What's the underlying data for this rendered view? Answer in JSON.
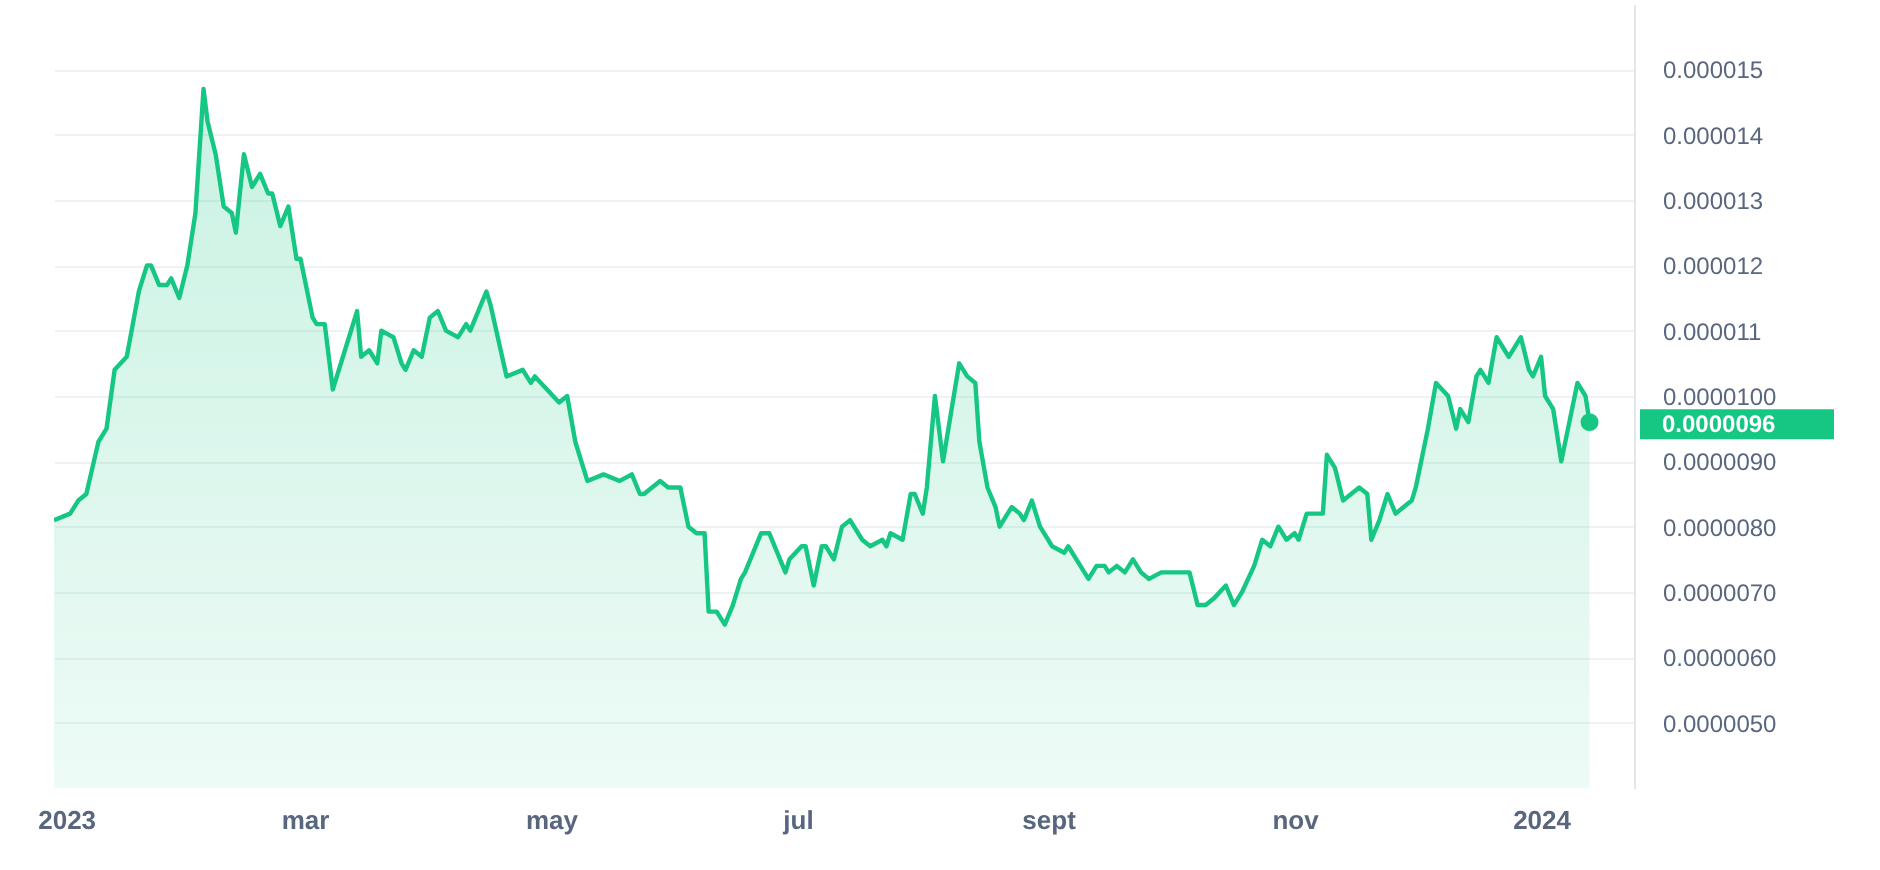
{
  "chart_data": {
    "type": "area",
    "x": [
      "2022-12-29",
      "2023-01-02",
      "2023-01-04",
      "2023-01-06",
      "2023-01-09",
      "2023-01-11",
      "2023-01-13",
      "2023-01-16",
      "2023-01-19",
      "2023-01-21",
      "2023-01-22",
      "2023-01-24",
      "2023-01-26",
      "2023-01-27",
      "2023-01-29",
      "2023-01-31",
      "2023-02-02",
      "2023-02-04",
      "2023-02-05",
      "2023-02-07",
      "2023-02-09",
      "2023-02-11",
      "2023-02-12",
      "2023-02-14",
      "2023-02-16",
      "2023-02-18",
      "2023-02-20",
      "2023-02-21",
      "2023-02-23",
      "2023-02-25",
      "2023-02-27",
      "2023-02-28",
      "2023-03-03",
      "2023-03-04",
      "2023-03-06",
      "2023-03-08",
      "2023-03-11",
      "2023-03-14",
      "2023-03-15",
      "2023-03-17",
      "2023-03-19",
      "2023-03-20",
      "2023-03-23",
      "2023-03-25",
      "2023-03-26",
      "2023-03-28",
      "2023-03-30",
      "2023-04-01",
      "2023-04-03",
      "2023-04-05",
      "2023-04-08",
      "2023-04-10",
      "2023-04-11",
      "2023-04-15",
      "2023-04-16",
      "2023-04-20",
      "2023-04-24",
      "2023-04-26",
      "2023-04-27",
      "2023-04-30",
      "2023-05-03",
      "2023-05-05",
      "2023-05-07",
      "2023-05-10",
      "2023-05-14",
      "2023-05-18",
      "2023-05-21",
      "2023-05-23",
      "2023-05-24",
      "2023-05-28",
      "2023-05-30",
      "2023-06-02",
      "2023-06-04",
      "2023-06-06",
      "2023-06-08",
      "2023-06-09",
      "2023-06-11",
      "2023-06-13",
      "2023-06-15",
      "2023-06-17",
      "2023-06-18",
      "2023-06-22",
      "2023-06-24",
      "2023-06-28",
      "2023-06-29",
      "2023-07-02",
      "2023-07-03",
      "2023-07-05",
      "2023-07-07",
      "2023-07-08",
      "2023-07-10",
      "2023-07-12",
      "2023-07-14",
      "2023-07-17",
      "2023-07-19",
      "2023-07-22",
      "2023-07-23",
      "2023-07-24",
      "2023-07-27",
      "2023-07-29",
      "2023-07-30",
      "2023-08-01",
      "2023-08-02",
      "2023-08-04",
      "2023-08-06",
      "2023-08-10",
      "2023-08-12",
      "2023-08-14",
      "2023-08-15",
      "2023-08-17",
      "2023-08-19",
      "2023-08-20",
      "2023-08-23",
      "2023-08-25",
      "2023-08-26",
      "2023-08-28",
      "2023-08-30",
      "2023-08-31",
      "2023-09-02",
      "2023-09-05",
      "2023-09-06",
      "2023-09-08",
      "2023-09-11",
      "2023-09-13",
      "2023-09-15",
      "2023-09-16",
      "2023-09-18",
      "2023-09-20",
      "2023-09-22",
      "2023-09-24",
      "2023-09-26",
      "2023-09-29",
      "2023-10-01",
      "2023-10-03",
      "2023-10-06",
      "2023-10-08",
      "2023-10-10",
      "2023-10-12",
      "2023-10-15",
      "2023-10-17",
      "2023-10-19",
      "2023-10-22",
      "2023-10-24",
      "2023-10-26",
      "2023-10-28",
      "2023-10-30",
      "2023-11-01",
      "2023-11-02",
      "2023-11-04",
      "2023-11-07",
      "2023-11-08",
      "2023-11-09",
      "2023-11-11",
      "2023-11-13",
      "2023-11-15",
      "2023-11-17",
      "2023-11-19",
      "2023-11-20",
      "2023-11-22",
      "2023-11-24",
      "2023-11-26",
      "2023-11-28",
      "2023-11-30",
      "2023-12-01",
      "2023-12-04",
      "2023-12-06",
      "2023-12-09",
      "2023-12-11",
      "2023-12-12",
      "2023-12-14",
      "2023-12-16",
      "2023-12-17",
      "2023-12-19",
      "2023-12-21",
      "2023-12-23",
      "2023-12-24",
      "2023-12-27",
      "2023-12-29",
      "2023-12-30",
      "2024-01-01",
      "2024-01-02",
      "2024-01-04",
      "2024-01-06",
      "2024-01-08",
      "2024-01-10",
      "2024-01-12",
      "2024-01-13"
    ],
    "series": [
      {
        "color": "#16c784",
        "values": [
          8.1e-06,
          8.2e-06,
          8.4e-06,
          8.5e-06,
          9.3e-06,
          9.5e-06,
          1.04e-05,
          1.06e-05,
          1.16e-05,
          1.2e-05,
          1.2e-05,
          1.17e-05,
          1.17e-05,
          1.18e-05,
          1.15e-05,
          1.2e-05,
          1.28e-05,
          1.47e-05,
          1.42e-05,
          1.37e-05,
          1.29e-05,
          1.28e-05,
          1.25e-05,
          1.37e-05,
          1.32e-05,
          1.34e-05,
          1.31e-05,
          1.31e-05,
          1.26e-05,
          1.29e-05,
          1.21e-05,
          1.21e-05,
          1.12e-05,
          1.11e-05,
          1.11e-05,
          1.01e-05,
          1.07e-05,
          1.13e-05,
          1.06e-05,
          1.07e-05,
          1.05e-05,
          1.1e-05,
          1.09e-05,
          1.05e-05,
          1.04e-05,
          1.07e-05,
          1.06e-05,
          1.12e-05,
          1.13e-05,
          1.1e-05,
          1.09e-05,
          1.11e-05,
          1.1e-05,
          1.16e-05,
          1.14e-05,
          1.03e-05,
          1.04e-05,
          1.02e-05,
          1.03e-05,
          1.01e-05,
          9.9e-06,
          1e-05,
          9.3e-06,
          8.7e-06,
          8.8e-06,
          8.7e-06,
          8.8e-06,
          8.5e-06,
          8.5e-06,
          8.7e-06,
          8.6e-06,
          8.6e-06,
          8e-06,
          7.9e-06,
          7.9e-06,
          6.7e-06,
          6.7e-06,
          6.5e-06,
          6.8e-06,
          7.2e-06,
          7.3e-06,
          7.9e-06,
          7.9e-06,
          7.3e-06,
          7.5e-06,
          7.7e-06,
          7.7e-06,
          7.1e-06,
          7.7e-06,
          7.7e-06,
          7.5e-06,
          8e-06,
          8.1e-06,
          7.8e-06,
          7.7e-06,
          7.8e-06,
          7.7e-06,
          7.9e-06,
          7.8e-06,
          8.5e-06,
          8.5e-06,
          8.2e-06,
          8.6e-06,
          1e-05,
          9e-06,
          1.05e-05,
          1.03e-05,
          1.02e-05,
          9.3e-06,
          8.6e-06,
          8.3e-06,
          8e-06,
          8.3e-06,
          8.2e-06,
          8.1e-06,
          8.4e-06,
          8e-06,
          7.9e-06,
          7.7e-06,
          7.6e-06,
          7.7e-06,
          7.5e-06,
          7.2e-06,
          7.4e-06,
          7.4e-06,
          7.3e-06,
          7.4e-06,
          7.3e-06,
          7.5e-06,
          7.3e-06,
          7.2e-06,
          7.3e-06,
          7.3e-06,
          7.3e-06,
          7.3e-06,
          6.8e-06,
          6.8e-06,
          6.9e-06,
          7.1e-06,
          6.8e-06,
          7e-06,
          7.4e-06,
          7.8e-06,
          7.7e-06,
          8e-06,
          7.8e-06,
          7.9e-06,
          7.8e-06,
          8.2e-06,
          8.2e-06,
          8.2e-06,
          9.1e-06,
          8.9e-06,
          8.4e-06,
          8.5e-06,
          8.6e-06,
          8.5e-06,
          7.8e-06,
          8.1e-06,
          8.5e-06,
          8.2e-06,
          8.3e-06,
          8.4e-06,
          8.6e-06,
          9.5e-06,
          1.02e-05,
          1e-05,
          9.5e-06,
          9.8e-06,
          9.6e-06,
          1.03e-05,
          1.04e-05,
          1.02e-05,
          1.09e-05,
          1.07e-05,
          1.06e-05,
          1.09e-05,
          1.04e-05,
          1.03e-05,
          1.06e-05,
          1e-05,
          9.8e-06,
          9e-06,
          9.6e-06,
          1.02e-05,
          1e-05,
          9.6e-06
        ]
      }
    ],
    "xlim": [
      "2022-12-29",
      "2024-01-24"
    ],
    "xticks": [
      {
        "value": "2023-01-01",
        "label": "2023"
      },
      {
        "value": "2023-03-01",
        "label": "mar"
      },
      {
        "value": "2023-05-01",
        "label": "may"
      },
      {
        "value": "2023-07-01",
        "label": "jul"
      },
      {
        "value": "2023-09-01",
        "label": "sept"
      },
      {
        "value": "2023-11-01",
        "label": "nov"
      },
      {
        "value": "2024-01-01",
        "label": "2024"
      }
    ],
    "ylim": [
      4e-06,
      1.6e-05
    ],
    "yticks": [
      {
        "value": 5e-06,
        "label": "0.0000050"
      },
      {
        "value": 6e-06,
        "label": "0.0000060"
      },
      {
        "value": 7e-06,
        "label": "0.0000070"
      },
      {
        "value": 8e-06,
        "label": "0.0000080"
      },
      {
        "value": 9e-06,
        "label": "0.0000090"
      },
      {
        "value": 1e-05,
        "label": "0.0000100"
      },
      {
        "value": 1.1e-05,
        "label": "0.000011"
      },
      {
        "value": 1.2e-05,
        "label": "0.000012"
      },
      {
        "value": 1.3e-05,
        "label": "0.000013"
      },
      {
        "value": 1.4e-05,
        "label": "0.000014"
      },
      {
        "value": 1.5e-05,
        "label": "0.000015"
      }
    ],
    "grid": "y",
    "annotations": [
      {
        "text": "0.0000096",
        "x": "2024-01-13",
        "y": 9.6e-06
      }
    ]
  }
}
